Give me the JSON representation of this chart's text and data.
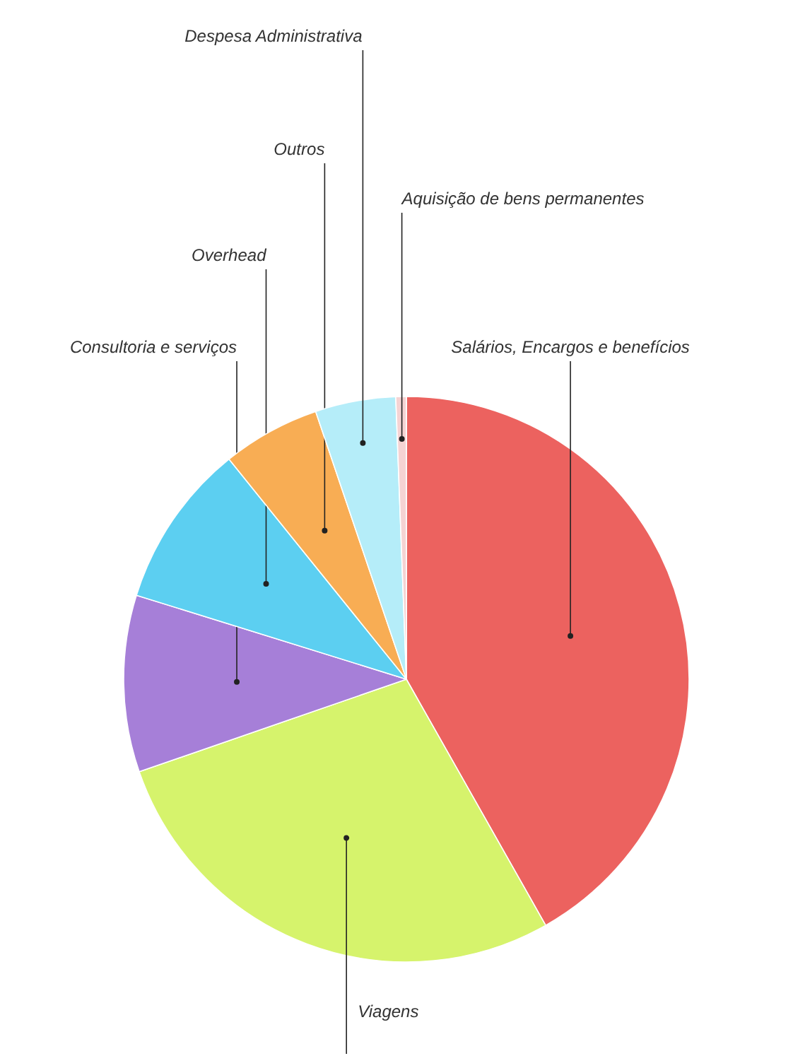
{
  "chart_data": {
    "type": "pie",
    "categories": [
      "Salários, Encargos e benefícios",
      "Viagens",
      "Consultoria e serviços",
      "Overhead",
      "Outros",
      "Despesa Administrativa",
      "Aquisição de bens permanentes"
    ],
    "values": [
      41.8,
      27.9,
      10.1,
      9.4,
      5.6,
      4.6,
      0.6
    ],
    "colors": [
      "#ec625f",
      "#d6f36c",
      "#a67fd8",
      "#5ccff1",
      "#f8ad54",
      "#b5edf9",
      "#f5d3d3"
    ]
  }
}
